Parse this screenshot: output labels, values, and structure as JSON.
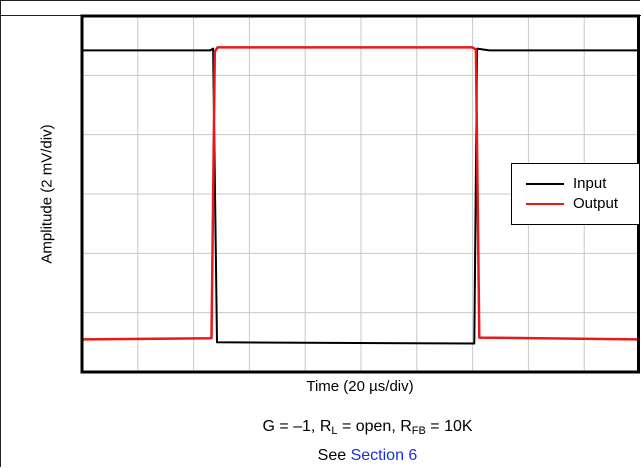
{
  "chart_data": {
    "type": "line",
    "title": "",
    "xlabel": "Time (20 µs/div)",
    "ylabel": "Amplitude (2 mV/div)",
    "x_divisions": 10,
    "y_divisions": 6,
    "xlim": [
      0,
      10
    ],
    "ylim": [
      0,
      6
    ],
    "grid": true,
    "legend_position": "right",
    "series": [
      {
        "name": "Input",
        "color": "#000000",
        "x": [
          0,
          2.3,
          2.35,
          2.42,
          7.03,
          7.08,
          7.3,
          10
        ],
        "y": [
          5.42,
          5.42,
          5.45,
          0.5,
          0.48,
          5.45,
          5.42,
          5.42
        ]
      },
      {
        "name": "Output",
        "color": "#e8191b",
        "x": [
          0,
          2.32,
          2.38,
          2.43,
          7.0,
          7.06,
          7.12,
          10
        ],
        "y": [
          0.55,
          0.57,
          5.4,
          5.47,
          5.47,
          5.43,
          0.58,
          0.55
        ]
      }
    ]
  },
  "caption": {
    "line1_prefix": "G = –1, R",
    "line1_sub1": "L",
    "line1_mid": " = open, R",
    "line1_sub2": "FB",
    "line1_suffix": " = 10K",
    "line2_prefix": "See ",
    "line2_link": "Section 6"
  }
}
